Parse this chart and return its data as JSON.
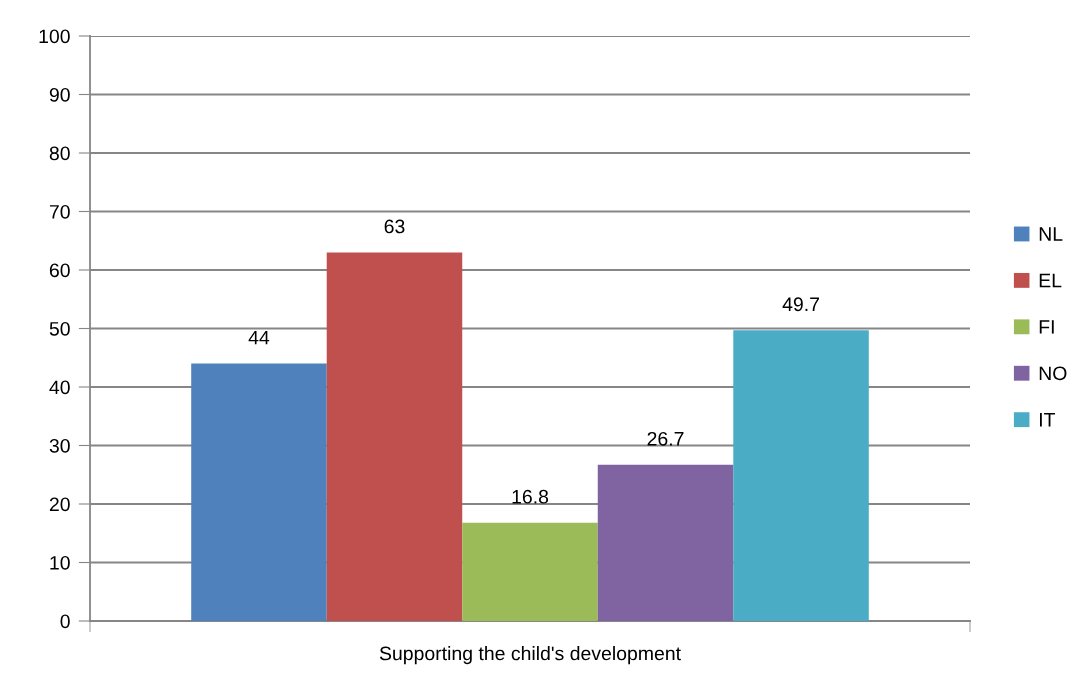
{
  "chart_data": {
    "type": "bar",
    "categories": [
      "Supporting the child's development"
    ],
    "series": [
      {
        "name": "NL",
        "color": "#4f81bd",
        "values": [
          44
        ]
      },
      {
        "name": "EL",
        "color": "#c0504d",
        "values": [
          63
        ]
      },
      {
        "name": "FI",
        "color": "#9bbb59",
        "values": [
          16.8
        ]
      },
      {
        "name": "NO",
        "color": "#8064a2",
        "values": [
          26.7
        ]
      },
      {
        "name": "IT",
        "color": "#4bacc6",
        "values": [
          49.7
        ]
      }
    ],
    "ylim": [
      0,
      100
    ],
    "yticks": [
      0,
      10,
      20,
      30,
      40,
      50,
      60,
      70,
      80,
      90,
      100
    ],
    "grid": "y",
    "legend": "right",
    "data_labels": true
  }
}
